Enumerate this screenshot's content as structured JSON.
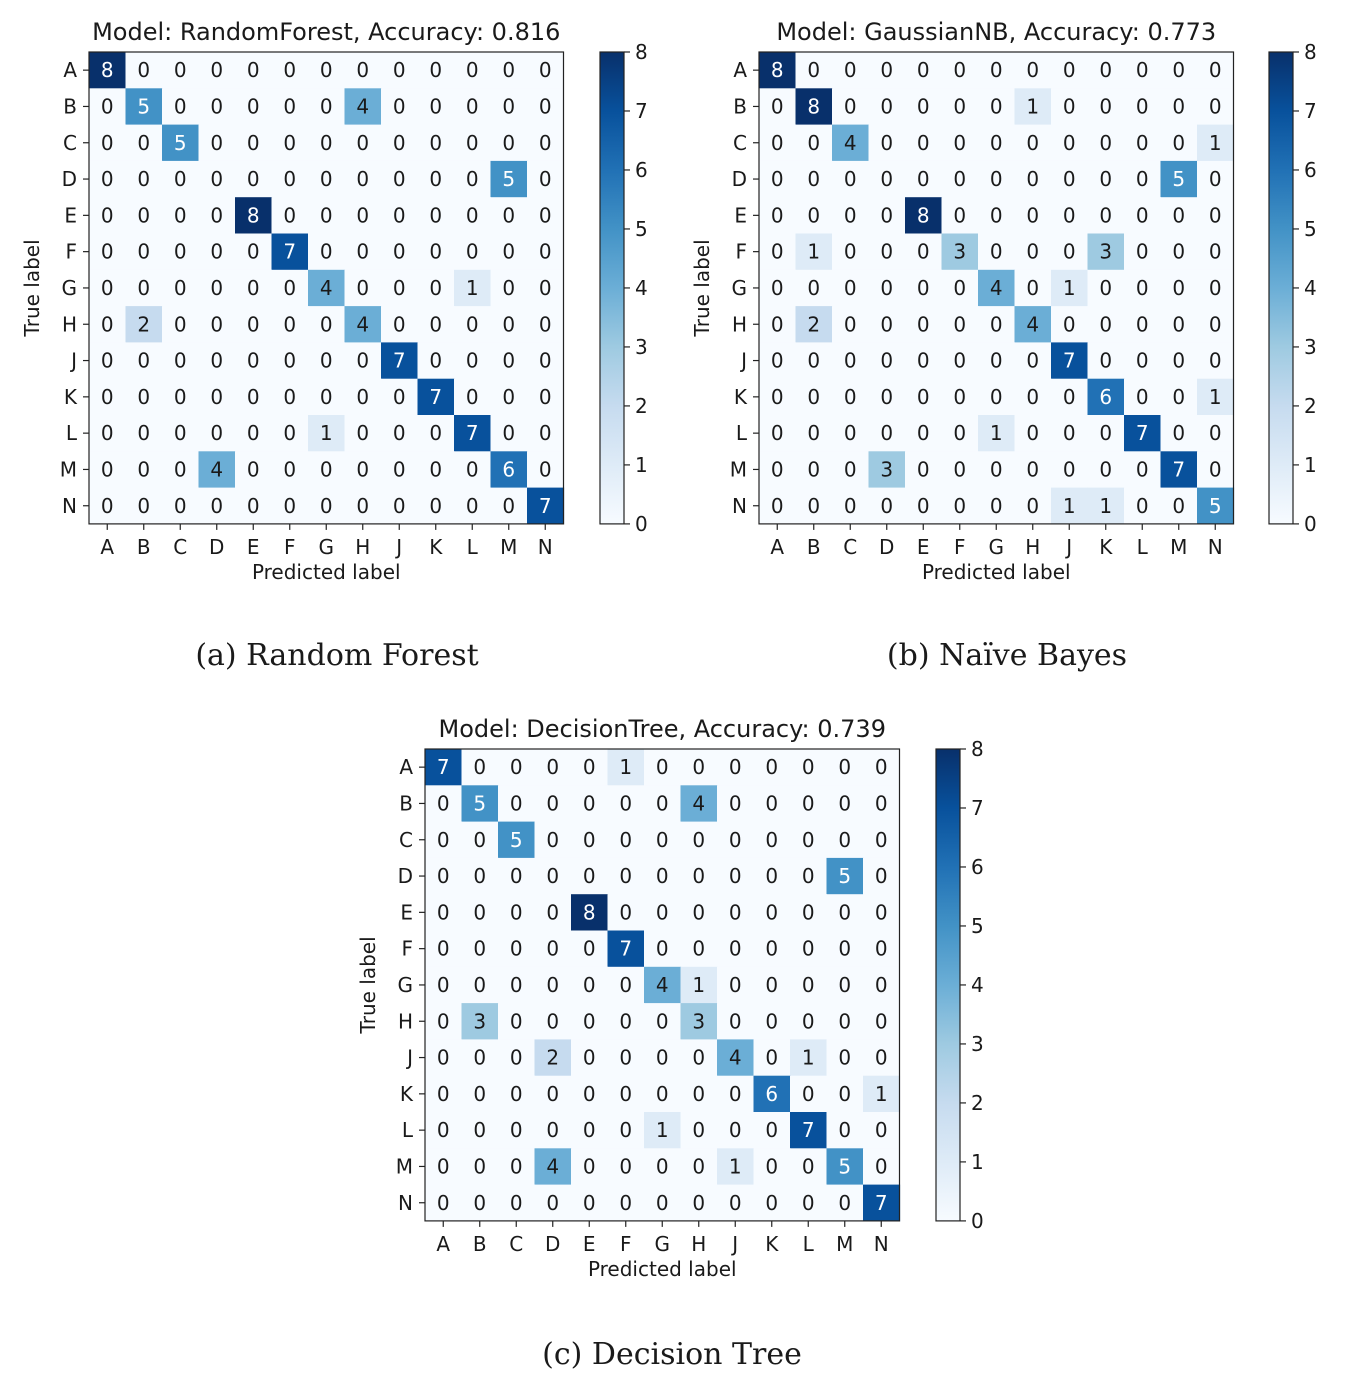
{
  "colors": {
    "cmap": [
      "#f7fbff",
      "#deebf7",
      "#c6dbef",
      "#9ecae1",
      "#6baed6",
      "#4292c6",
      "#2171b5",
      "#08519c",
      "#08306b"
    ],
    "text_dark": "#1a1a1a",
    "text_light": "#ffffff",
    "axis": "#222222"
  },
  "chart_data": [
    {
      "type": "heatmap",
      "title": "Model: RandomForest, Accuracy: 0.816",
      "caption": "(a) Random Forest",
      "xlabel": "Predicted label",
      "ylabel": "True label",
      "x_categories": [
        "A",
        "B",
        "C",
        "D",
        "E",
        "F",
        "G",
        "H",
        "J",
        "K",
        "L",
        "M",
        "N"
      ],
      "y_categories": [
        "A",
        "B",
        "C",
        "D",
        "E",
        "F",
        "G",
        "H",
        "J",
        "K",
        "L",
        "M",
        "N"
      ],
      "colorbar": {
        "min": 0,
        "max": 8,
        "ticks": [
          0,
          1,
          2,
          3,
          4,
          5,
          6,
          7,
          8
        ]
      },
      "matrix": [
        [
          8,
          0,
          0,
          0,
          0,
          0,
          0,
          0,
          0,
          0,
          0,
          0,
          0
        ],
        [
          0,
          5,
          0,
          0,
          0,
          0,
          0,
          4,
          0,
          0,
          0,
          0,
          0
        ],
        [
          0,
          0,
          5,
          0,
          0,
          0,
          0,
          0,
          0,
          0,
          0,
          0,
          0
        ],
        [
          0,
          0,
          0,
          0,
          0,
          0,
          0,
          0,
          0,
          0,
          0,
          5,
          0
        ],
        [
          0,
          0,
          0,
          0,
          8,
          0,
          0,
          0,
          0,
          0,
          0,
          0,
          0
        ],
        [
          0,
          0,
          0,
          0,
          0,
          7,
          0,
          0,
          0,
          0,
          0,
          0,
          0
        ],
        [
          0,
          0,
          0,
          0,
          0,
          0,
          4,
          0,
          0,
          0,
          1,
          0,
          0
        ],
        [
          0,
          2,
          0,
          0,
          0,
          0,
          0,
          4,
          0,
          0,
          0,
          0,
          0
        ],
        [
          0,
          0,
          0,
          0,
          0,
          0,
          0,
          0,
          7,
          0,
          0,
          0,
          0
        ],
        [
          0,
          0,
          0,
          0,
          0,
          0,
          0,
          0,
          0,
          7,
          0,
          0,
          0
        ],
        [
          0,
          0,
          0,
          0,
          0,
          0,
          1,
          0,
          0,
          0,
          7,
          0,
          0
        ],
        [
          0,
          0,
          0,
          4,
          0,
          0,
          0,
          0,
          0,
          0,
          0,
          6,
          0
        ],
        [
          0,
          0,
          0,
          0,
          0,
          0,
          0,
          0,
          0,
          0,
          0,
          0,
          7
        ]
      ]
    },
    {
      "type": "heatmap",
      "title": "Model: GaussianNB, Accuracy: 0.773",
      "caption": "(b) Naïve Bayes",
      "xlabel": "Predicted label",
      "ylabel": "True label",
      "x_categories": [
        "A",
        "B",
        "C",
        "D",
        "E",
        "F",
        "G",
        "H",
        "J",
        "K",
        "L",
        "M",
        "N"
      ],
      "y_categories": [
        "A",
        "B",
        "C",
        "D",
        "E",
        "F",
        "G",
        "H",
        "J",
        "K",
        "L",
        "M",
        "N"
      ],
      "colorbar": {
        "min": 0,
        "max": 8,
        "ticks": [
          0,
          1,
          2,
          3,
          4,
          5,
          6,
          7,
          8
        ]
      },
      "matrix": [
        [
          8,
          0,
          0,
          0,
          0,
          0,
          0,
          0,
          0,
          0,
          0,
          0,
          0
        ],
        [
          0,
          8,
          0,
          0,
          0,
          0,
          0,
          1,
          0,
          0,
          0,
          0,
          0
        ],
        [
          0,
          0,
          4,
          0,
          0,
          0,
          0,
          0,
          0,
          0,
          0,
          0,
          1
        ],
        [
          0,
          0,
          0,
          0,
          0,
          0,
          0,
          0,
          0,
          0,
          0,
          5,
          0
        ],
        [
          0,
          0,
          0,
          0,
          8,
          0,
          0,
          0,
          0,
          0,
          0,
          0,
          0
        ],
        [
          0,
          1,
          0,
          0,
          0,
          3,
          0,
          0,
          0,
          3,
          0,
          0,
          0
        ],
        [
          0,
          0,
          0,
          0,
          0,
          0,
          4,
          0,
          1,
          0,
          0,
          0,
          0
        ],
        [
          0,
          2,
          0,
          0,
          0,
          0,
          0,
          4,
          0,
          0,
          0,
          0,
          0
        ],
        [
          0,
          0,
          0,
          0,
          0,
          0,
          0,
          0,
          7,
          0,
          0,
          0,
          0
        ],
        [
          0,
          0,
          0,
          0,
          0,
          0,
          0,
          0,
          0,
          6,
          0,
          0,
          1
        ],
        [
          0,
          0,
          0,
          0,
          0,
          0,
          1,
          0,
          0,
          0,
          7,
          0,
          0
        ],
        [
          0,
          0,
          0,
          3,
          0,
          0,
          0,
          0,
          0,
          0,
          0,
          7,
          0
        ],
        [
          0,
          0,
          0,
          0,
          0,
          0,
          0,
          0,
          1,
          1,
          0,
          0,
          5
        ]
      ]
    },
    {
      "type": "heatmap",
      "title": "Model: DecisionTree, Accuracy: 0.739",
      "caption": "(c) Decision Tree",
      "xlabel": "Predicted label",
      "ylabel": "True label",
      "x_categories": [
        "A",
        "B",
        "C",
        "D",
        "E",
        "F",
        "G",
        "H",
        "J",
        "K",
        "L",
        "M",
        "N"
      ],
      "y_categories": [
        "A",
        "B",
        "C",
        "D",
        "E",
        "F",
        "G",
        "H",
        "J",
        "K",
        "L",
        "M",
        "N"
      ],
      "colorbar": {
        "min": 0,
        "max": 8,
        "ticks": [
          0,
          1,
          2,
          3,
          4,
          5,
          6,
          7,
          8
        ]
      },
      "matrix": [
        [
          7,
          0,
          0,
          0,
          0,
          1,
          0,
          0,
          0,
          0,
          0,
          0,
          0
        ],
        [
          0,
          5,
          0,
          0,
          0,
          0,
          0,
          4,
          0,
          0,
          0,
          0,
          0
        ],
        [
          0,
          0,
          5,
          0,
          0,
          0,
          0,
          0,
          0,
          0,
          0,
          0,
          0
        ],
        [
          0,
          0,
          0,
          0,
          0,
          0,
          0,
          0,
          0,
          0,
          0,
          5,
          0
        ],
        [
          0,
          0,
          0,
          0,
          8,
          0,
          0,
          0,
          0,
          0,
          0,
          0,
          0
        ],
        [
          0,
          0,
          0,
          0,
          0,
          7,
          0,
          0,
          0,
          0,
          0,
          0,
          0
        ],
        [
          0,
          0,
          0,
          0,
          0,
          0,
          4,
          1,
          0,
          0,
          0,
          0,
          0
        ],
        [
          0,
          3,
          0,
          0,
          0,
          0,
          0,
          3,
          0,
          0,
          0,
          0,
          0
        ],
        [
          0,
          0,
          0,
          2,
          0,
          0,
          0,
          0,
          4,
          0,
          1,
          0,
          0
        ],
        [
          0,
          0,
          0,
          0,
          0,
          0,
          0,
          0,
          0,
          6,
          0,
          0,
          1
        ],
        [
          0,
          0,
          0,
          0,
          0,
          0,
          1,
          0,
          0,
          0,
          7,
          0,
          0
        ],
        [
          0,
          0,
          0,
          4,
          0,
          0,
          0,
          0,
          1,
          0,
          0,
          5,
          0
        ],
        [
          0,
          0,
          0,
          0,
          0,
          0,
          0,
          0,
          0,
          0,
          0,
          0,
          7
        ]
      ]
    }
  ]
}
